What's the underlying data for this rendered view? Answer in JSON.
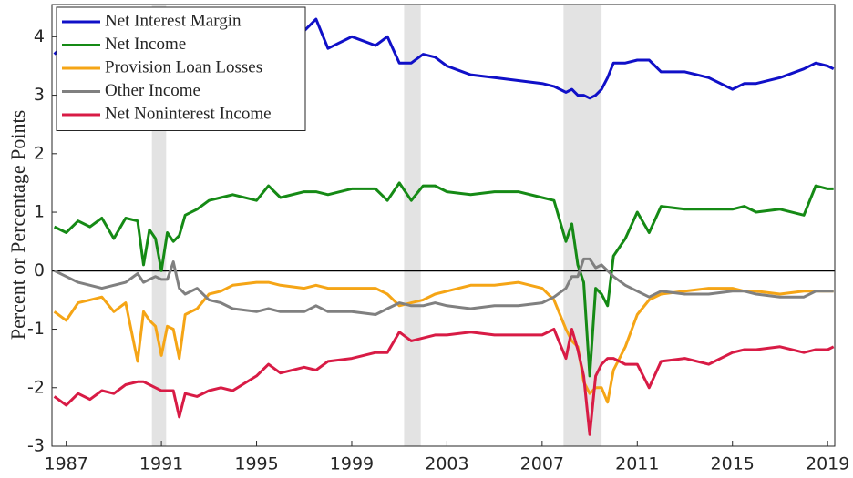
{
  "chart_data": {
    "type": "line",
    "ylabel": "Percent or Percentage Points",
    "x": [
      1986.5,
      1987,
      1987.5,
      1988,
      1988.5,
      1989,
      1989.5,
      1990,
      1990.25,
      1990.5,
      1990.75,
      1991,
      1991.25,
      1991.5,
      1991.75,
      1992,
      1992.5,
      1993,
      1993.5,
      1994,
      1995,
      1995.5,
      1996,
      1997,
      1997.5,
      1998,
      1999,
      2000,
      2000.5,
      2001,
      2001.5,
      2002,
      2002.5,
      2003,
      2004,
      2005,
      2006,
      2007,
      2007.5,
      2008,
      2008.25,
      2008.5,
      2008.75,
      2009,
      2009.25,
      2009.5,
      2009.75,
      2010,
      2010.5,
      2011,
      2011.5,
      2012,
      2013,
      2014,
      2015,
      2015.5,
      2016,
      2017,
      2018,
      2018.5,
      2019,
      2019.25
    ],
    "series": [
      {
        "name": "Net Interest Margin",
        "color": "#1010c8",
        "values": [
          3.7,
          3.9,
          3.9,
          4.0,
          4.0,
          4.05,
          4.1,
          4.0,
          4.0,
          3.95,
          3.95,
          4.0,
          4.0,
          4.1,
          4.15,
          4.3,
          4.4,
          4.4,
          4.35,
          4.3,
          4.15,
          4.1,
          4.0,
          4.1,
          4.3,
          3.8,
          4.0,
          3.85,
          4.0,
          3.55,
          3.55,
          3.7,
          3.65,
          3.5,
          3.35,
          3.3,
          3.25,
          3.2,
          3.15,
          3.05,
          3.1,
          3.0,
          3.0,
          2.95,
          3.0,
          3.1,
          3.3,
          3.55,
          3.55,
          3.6,
          3.6,
          3.4,
          3.4,
          3.3,
          3.1,
          3.2,
          3.2,
          3.3,
          3.45,
          3.55,
          3.5,
          3.45
        ]
      },
      {
        "name": "Net Income",
        "color": "#158a15",
        "values": [
          0.75,
          0.65,
          0.85,
          0.75,
          0.9,
          0.55,
          0.9,
          0.85,
          0.1,
          0.7,
          0.55,
          0.0,
          0.65,
          0.5,
          0.6,
          0.95,
          1.05,
          1.2,
          1.25,
          1.3,
          1.2,
          1.45,
          1.25,
          1.35,
          1.35,
          1.3,
          1.4,
          1.4,
          1.2,
          1.5,
          1.2,
          1.45,
          1.45,
          1.35,
          1.3,
          1.35,
          1.35,
          1.25,
          1.2,
          0.5,
          0.8,
          0.1,
          -0.2,
          -1.8,
          -0.3,
          -0.4,
          -0.6,
          0.25,
          0.55,
          1.0,
          0.65,
          1.1,
          1.05,
          1.05,
          1.05,
          1.1,
          1.0,
          1.05,
          0.95,
          1.45,
          1.4,
          1.4
        ]
      },
      {
        "name": "Provision Loan Losses",
        "color": "#f5a516",
        "values": [
          -0.7,
          -0.85,
          -0.55,
          -0.5,
          -0.45,
          -0.7,
          -0.55,
          -1.55,
          -0.7,
          -0.85,
          -0.95,
          -1.45,
          -0.95,
          -1.0,
          -1.5,
          -0.75,
          -0.65,
          -0.4,
          -0.35,
          -0.25,
          -0.2,
          -0.2,
          -0.25,
          -0.3,
          -0.25,
          -0.3,
          -0.3,
          -0.3,
          -0.4,
          -0.6,
          -0.55,
          -0.5,
          -0.4,
          -0.35,
          -0.25,
          -0.25,
          -0.2,
          -0.3,
          -0.5,
          -1.0,
          -1.2,
          -1.3,
          -1.9,
          -2.1,
          -2.0,
          -2.0,
          -2.25,
          -1.7,
          -1.3,
          -0.75,
          -0.5,
          -0.4,
          -0.35,
          -0.3,
          -0.3,
          -0.35,
          -0.35,
          -0.4,
          -0.35,
          -0.35,
          -0.35,
          -0.35
        ]
      },
      {
        "name": "Other Income",
        "color": "#808080",
        "values": [
          0.0,
          -0.1,
          -0.2,
          -0.25,
          -0.3,
          -0.25,
          -0.2,
          -0.05,
          -0.2,
          -0.15,
          -0.1,
          -0.15,
          -0.15,
          0.15,
          -0.3,
          -0.4,
          -0.3,
          -0.5,
          -0.55,
          -0.65,
          -0.7,
          -0.65,
          -0.7,
          -0.7,
          -0.6,
          -0.7,
          -0.7,
          -0.75,
          -0.65,
          -0.55,
          -0.6,
          -0.6,
          -0.55,
          -0.6,
          -0.65,
          -0.6,
          -0.6,
          -0.55,
          -0.45,
          -0.3,
          -0.1,
          -0.1,
          0.2,
          0.2,
          0.05,
          0.1,
          0.0,
          -0.1,
          -0.25,
          -0.35,
          -0.45,
          -0.35,
          -0.4,
          -0.4,
          -0.35,
          -0.35,
          -0.4,
          -0.45,
          -0.45,
          -0.35,
          -0.35,
          -0.35
        ]
      },
      {
        "name": "Net Noninterest Income",
        "color": "#d81b45",
        "values": [
          -2.15,
          -2.3,
          -2.1,
          -2.2,
          -2.05,
          -2.1,
          -1.95,
          -1.9,
          -1.9,
          -1.95,
          -2.0,
          -2.05,
          -2.05,
          -2.05,
          -2.5,
          -2.1,
          -2.15,
          -2.05,
          -2.0,
          -2.05,
          -1.8,
          -1.6,
          -1.75,
          -1.65,
          -1.7,
          -1.55,
          -1.5,
          -1.4,
          -1.4,
          -1.05,
          -1.2,
          -1.15,
          -1.1,
          -1.1,
          -1.05,
          -1.1,
          -1.1,
          -1.1,
          -1.0,
          -1.5,
          -1.0,
          -1.35,
          -1.8,
          -2.8,
          -1.8,
          -1.6,
          -1.5,
          -1.5,
          -1.6,
          -1.6,
          -2.0,
          -1.55,
          -1.5,
          -1.6,
          -1.4,
          -1.35,
          -1.35,
          -1.3,
          -1.4,
          -1.35,
          -1.35,
          -1.3
        ]
      }
    ],
    "recessions": [
      [
        1990.6,
        1991.2
      ],
      [
        2001.2,
        2001.9
      ],
      [
        2007.9,
        2009.5
      ]
    ],
    "hline": 0,
    "xlim": [
      1986.4,
      2019.3
    ],
    "xticks": [
      1987,
      1991,
      1995,
      1999,
      2003,
      2007,
      2011,
      2015,
      2019
    ],
    "ylim": [
      -3,
      4.55
    ],
    "yticks": [
      -3,
      -2,
      -1,
      0,
      1,
      2,
      3,
      4
    ],
    "legend": "upper left"
  }
}
